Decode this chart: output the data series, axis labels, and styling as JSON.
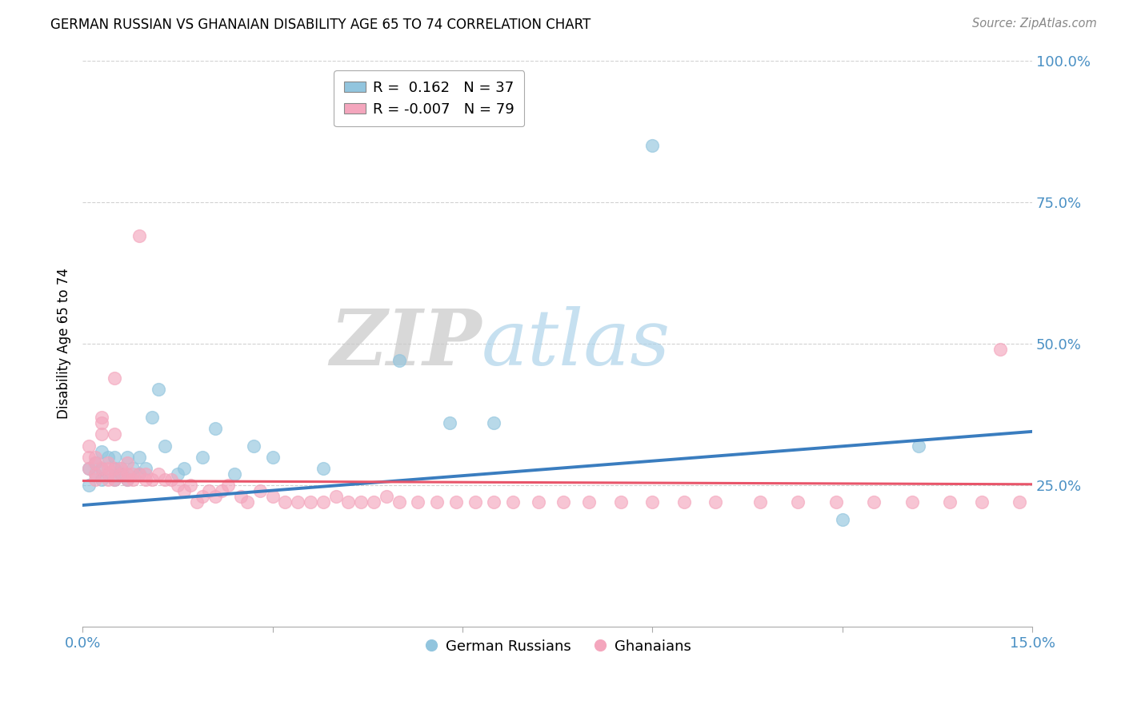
{
  "title": "GERMAN RUSSIAN VS GHANAIAN DISABILITY AGE 65 TO 74 CORRELATION CHART",
  "source": "Source: ZipAtlas.com",
  "ylabel": "Disability Age 65 to 74",
  "xlim": [
    0.0,
    0.15
  ],
  "ylim": [
    0.0,
    1.0
  ],
  "x_ticks": [
    0.0,
    0.03,
    0.06,
    0.09,
    0.12,
    0.15
  ],
  "x_tick_labels": [
    "0.0%",
    "",
    "",
    "",
    "",
    "15.0%"
  ],
  "y_ticks": [
    0.0,
    0.25,
    0.5,
    0.75,
    1.0
  ],
  "y_tick_labels": [
    "",
    "25.0%",
    "50.0%",
    "75.0%",
    "100.0%"
  ],
  "blue_color": "#92c5de",
  "pink_color": "#f4a6bd",
  "blue_line_color": "#3a7dbf",
  "pink_line_color": "#e8556a",
  "legend_r_blue": "0.162",
  "legend_n_blue": "37",
  "legend_r_pink": "-0.007",
  "legend_n_pink": "79",
  "watermark_zip": "ZIP",
  "watermark_atlas": "atlas",
  "blue_scatter_x": [
    0.001,
    0.001,
    0.002,
    0.002,
    0.003,
    0.003,
    0.003,
    0.004,
    0.004,
    0.005,
    0.005,
    0.005,
    0.006,
    0.006,
    0.007,
    0.007,
    0.008,
    0.009,
    0.009,
    0.01,
    0.011,
    0.012,
    0.013,
    0.015,
    0.016,
    0.019,
    0.021,
    0.024,
    0.027,
    0.03,
    0.038,
    0.05,
    0.058,
    0.065,
    0.09,
    0.12,
    0.132
  ],
  "blue_scatter_y": [
    0.28,
    0.25,
    0.29,
    0.27,
    0.26,
    0.28,
    0.31,
    0.27,
    0.3,
    0.26,
    0.28,
    0.3,
    0.28,
    0.27,
    0.3,
    0.26,
    0.28,
    0.27,
    0.3,
    0.28,
    0.37,
    0.42,
    0.32,
    0.27,
    0.28,
    0.3,
    0.35,
    0.27,
    0.32,
    0.3,
    0.28,
    0.47,
    0.36,
    0.36,
    0.85,
    0.19,
    0.32
  ],
  "pink_scatter_x": [
    0.001,
    0.001,
    0.001,
    0.002,
    0.002,
    0.002,
    0.002,
    0.003,
    0.003,
    0.003,
    0.003,
    0.004,
    0.004,
    0.004,
    0.004,
    0.005,
    0.005,
    0.005,
    0.006,
    0.006,
    0.007,
    0.007,
    0.007,
    0.008,
    0.008,
    0.009,
    0.009,
    0.01,
    0.01,
    0.011,
    0.012,
    0.013,
    0.014,
    0.015,
    0.016,
    0.017,
    0.018,
    0.019,
    0.02,
    0.021,
    0.022,
    0.023,
    0.025,
    0.026,
    0.028,
    0.03,
    0.032,
    0.034,
    0.036,
    0.038,
    0.04,
    0.042,
    0.044,
    0.046,
    0.048,
    0.05,
    0.053,
    0.056,
    0.059,
    0.062,
    0.065,
    0.068,
    0.072,
    0.076,
    0.08,
    0.085,
    0.09,
    0.095,
    0.1,
    0.107,
    0.113,
    0.119,
    0.125,
    0.131,
    0.137,
    0.142,
    0.145,
    0.148,
    0.005
  ],
  "pink_scatter_y": [
    0.3,
    0.28,
    0.32,
    0.27,
    0.3,
    0.26,
    0.29,
    0.37,
    0.28,
    0.34,
    0.36,
    0.29,
    0.27,
    0.26,
    0.28,
    0.34,
    0.26,
    0.28,
    0.27,
    0.28,
    0.26,
    0.29,
    0.27,
    0.26,
    0.27,
    0.27,
    0.69,
    0.26,
    0.27,
    0.26,
    0.27,
    0.26,
    0.26,
    0.25,
    0.24,
    0.25,
    0.22,
    0.23,
    0.24,
    0.23,
    0.24,
    0.25,
    0.23,
    0.22,
    0.24,
    0.23,
    0.22,
    0.22,
    0.22,
    0.22,
    0.23,
    0.22,
    0.22,
    0.22,
    0.23,
    0.22,
    0.22,
    0.22,
    0.22,
    0.22,
    0.22,
    0.22,
    0.22,
    0.22,
    0.22,
    0.22,
    0.22,
    0.22,
    0.22,
    0.22,
    0.22,
    0.22,
    0.22,
    0.22,
    0.22,
    0.22,
    0.49,
    0.22,
    0.44
  ]
}
